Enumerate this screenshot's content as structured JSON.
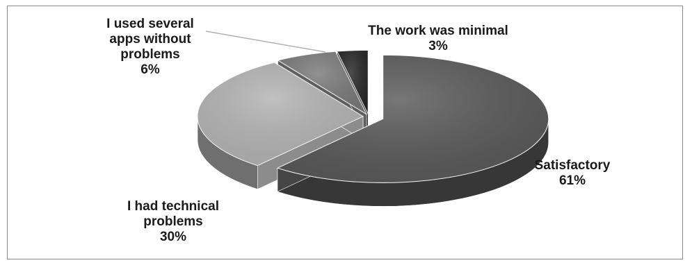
{
  "chart_data": {
    "type": "pie",
    "style": "3d-exploded",
    "categories": [
      "Satisfactory",
      "I had technical problems",
      "I used several apps without problems",
      "The work was minimal"
    ],
    "values": [
      61,
      30,
      6,
      3
    ],
    "colors": [
      "#595959",
      "#b3b3b3",
      "#7a7a7a",
      "#262626"
    ],
    "labels": [
      {
        "lines": [
          "Satisfactory"
        ],
        "pct": "61%"
      },
      {
        "lines": [
          "I had technical",
          "problems"
        ],
        "pct": "30%"
      },
      {
        "lines": [
          "I used several",
          "apps without",
          "problems"
        ],
        "pct": "6%"
      },
      {
        "lines": [
          "The work was minimal"
        ],
        "pct": "3%"
      }
    ]
  }
}
